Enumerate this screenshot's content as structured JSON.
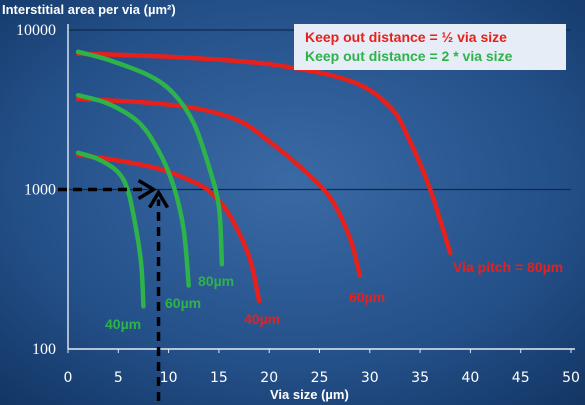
{
  "chart_data": {
    "type": "line",
    "ylabel": "Interstitial area per via (µm²)",
    "xlabel": "Via size (µm)",
    "xlim": [
      0,
      50
    ],
    "ylim": [
      100,
      10000
    ],
    "yscale": "log",
    "x_ticks": [
      "0",
      "5",
      "10",
      "15",
      "20",
      "25",
      "30",
      "35",
      "40",
      "45",
      "50"
    ],
    "y_ticks": [
      "10000",
      "1000",
      "100"
    ],
    "y_tick_values": [
      10000,
      1000,
      100
    ],
    "grid": true,
    "legend": {
      "placement": "top-right",
      "entries": [
        {
          "text": "Keep out distance  =  ½ via size",
          "color": "#e8201c"
        },
        {
          "text": "Keep out distance = 2 * via size",
          "color": "#2db34a"
        }
      ]
    },
    "series": [
      {
        "group": "red",
        "label": "40µm",
        "color": "#e8201c",
        "points": [
          [
            1,
            1650
          ],
          [
            5,
            1520
          ],
          [
            9,
            1350
          ],
          [
            12,
            1150
          ],
          [
            14,
            980
          ],
          [
            16,
            700
          ],
          [
            18,
            380
          ],
          [
            19,
            200
          ]
        ]
      },
      {
        "group": "red",
        "label": "60µm",
        "color": "#e8201c",
        "points": [
          [
            1,
            3700
          ],
          [
            8,
            3500
          ],
          [
            13,
            3200
          ],
          [
            17,
            2700
          ],
          [
            20,
            2000
          ],
          [
            23,
            1400
          ],
          [
            26,
            900
          ],
          [
            28,
            500
          ],
          [
            29,
            290
          ]
        ]
      },
      {
        "group": "red",
        "label": "Via pitch = 80µm",
        "color": "#e8201c",
        "points": [
          [
            1,
            7100
          ],
          [
            10,
            6800
          ],
          [
            20,
            6100
          ],
          [
            28,
            4800
          ],
          [
            32,
            3300
          ],
          [
            34,
            2000
          ],
          [
            36,
            1000
          ],
          [
            38,
            400
          ]
        ]
      },
      {
        "group": "green",
        "label": "40µm",
        "color": "#2db34a",
        "points": [
          [
            1,
            1700
          ],
          [
            3,
            1550
          ],
          [
            5,
            1280
          ],
          [
            6,
            960
          ],
          [
            6.8,
            550
          ],
          [
            7.3,
            330
          ],
          [
            7.5,
            185
          ]
        ]
      },
      {
        "group": "green",
        "label": "60µm",
        "color": "#2db34a",
        "points": [
          [
            1,
            3900
          ],
          [
            4,
            3450
          ],
          [
            7,
            2650
          ],
          [
            9,
            1750
          ],
          [
            10.5,
            1050
          ],
          [
            11.5,
            560
          ],
          [
            12,
            250
          ]
        ]
      },
      {
        "group": "green",
        "label": "80µm",
        "color": "#2db34a",
        "points": [
          [
            1,
            7300
          ],
          [
            4,
            6500
          ],
          [
            8,
            5200
          ],
          [
            10.5,
            4000
          ],
          [
            12.5,
            2600
          ],
          [
            14,
            1400
          ],
          [
            15,
            780
          ],
          [
            15.3,
            340
          ]
        ]
      }
    ],
    "annotation_arrow": {
      "x": 9,
      "y": 1000
    }
  }
}
